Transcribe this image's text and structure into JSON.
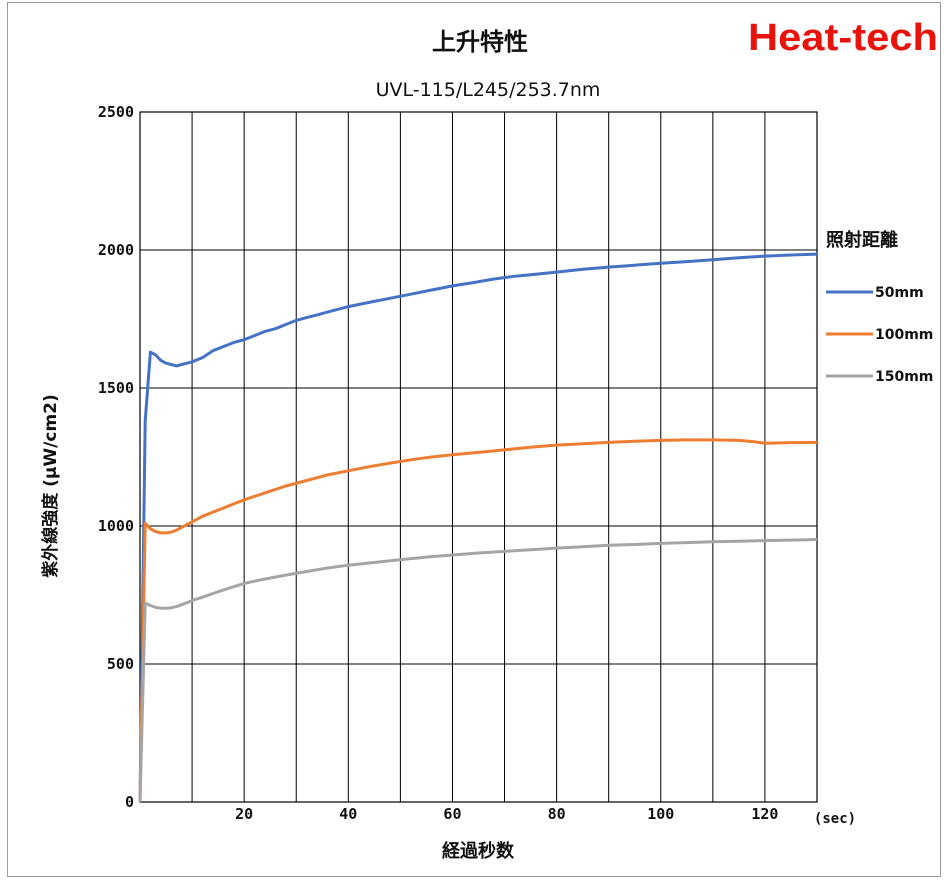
{
  "brand": {
    "logo_text": "Heat-tech",
    "color": "#e8140c"
  },
  "chart_data": {
    "type": "line",
    "title": "上升特性",
    "subtitle": "UVL-115/L245/253.7nm",
    "xlabel": "経過秒数",
    "x_unit": "(sec)",
    "ylabel": "紫外線強度 (μW/cm2)",
    "xlim": [
      0,
      130
    ],
    "ylim": [
      0,
      2500
    ],
    "x_ticks": [
      20,
      40,
      60,
      80,
      100,
      120
    ],
    "x_tick_labels": [
      "20",
      "40",
      "60",
      "80",
      "100",
      "120"
    ],
    "y_ticks": [
      0,
      500,
      1000,
      1500,
      2000,
      2500
    ],
    "y_tick_labels": [
      "0",
      "500",
      "1000",
      "1500",
      "2000",
      "2500"
    ],
    "x_grid_step": 10,
    "y_grid_step": 500,
    "grid": true,
    "legend": {
      "title": "照射距離",
      "position": "right"
    },
    "series": [
      {
        "name": "50mm",
        "color": "#4472c4",
        "points": [
          [
            0,
            0
          ],
          [
            1,
            1380
          ],
          [
            2,
            1630
          ],
          [
            3,
            1620
          ],
          [
            4,
            1600
          ],
          [
            5,
            1590
          ],
          [
            6,
            1585
          ],
          [
            7,
            1580
          ],
          [
            8,
            1585
          ],
          [
            9,
            1590
          ],
          [
            10,
            1595
          ],
          [
            12,
            1610
          ],
          [
            14,
            1635
          ],
          [
            16,
            1650
          ],
          [
            18,
            1665
          ],
          [
            20,
            1675
          ],
          [
            22,
            1690
          ],
          [
            24,
            1705
          ],
          [
            26,
            1715
          ],
          [
            28,
            1730
          ],
          [
            30,
            1745
          ],
          [
            32,
            1755
          ],
          [
            34,
            1765
          ],
          [
            36,
            1775
          ],
          [
            38,
            1785
          ],
          [
            40,
            1795
          ],
          [
            44,
            1810
          ],
          [
            48,
            1825
          ],
          [
            52,
            1840
          ],
          [
            56,
            1855
          ],
          [
            60,
            1870
          ],
          [
            64,
            1882
          ],
          [
            68,
            1895
          ],
          [
            72,
            1905
          ],
          [
            76,
            1912
          ],
          [
            80,
            1920
          ],
          [
            85,
            1930
          ],
          [
            90,
            1938
          ],
          [
            95,
            1945
          ],
          [
            100,
            1952
          ],
          [
            105,
            1958
          ],
          [
            110,
            1965
          ],
          [
            115,
            1972
          ],
          [
            120,
            1978
          ],
          [
            125,
            1982
          ],
          [
            130,
            1985
          ]
        ]
      },
      {
        "name": "100mm",
        "color": "#ed7d31",
        "points": [
          [
            0,
            0
          ],
          [
            1,
            1010
          ],
          [
            2,
            990
          ],
          [
            3,
            980
          ],
          [
            4,
            975
          ],
          [
            5,
            975
          ],
          [
            6,
            978
          ],
          [
            7,
            985
          ],
          [
            8,
            995
          ],
          [
            9,
            1005
          ],
          [
            10,
            1015
          ],
          [
            12,
            1035
          ],
          [
            14,
            1050
          ],
          [
            16,
            1065
          ],
          [
            18,
            1080
          ],
          [
            20,
            1095
          ],
          [
            24,
            1120
          ],
          [
            28,
            1145
          ],
          [
            32,
            1165
          ],
          [
            36,
            1185
          ],
          [
            40,
            1200
          ],
          [
            44,
            1215
          ],
          [
            48,
            1228
          ],
          [
            52,
            1240
          ],
          [
            56,
            1250
          ],
          [
            60,
            1258
          ],
          [
            64,
            1265
          ],
          [
            68,
            1272
          ],
          [
            72,
            1280
          ],
          [
            76,
            1287
          ],
          [
            80,
            1293
          ],
          [
            85,
            1298
          ],
          [
            90,
            1303
          ],
          [
            95,
            1307
          ],
          [
            100,
            1310
          ],
          [
            105,
            1312
          ],
          [
            110,
            1312
          ],
          [
            115,
            1310
          ],
          [
            118,
            1305
          ],
          [
            120,
            1300
          ],
          [
            125,
            1302
          ],
          [
            130,
            1303
          ]
        ]
      },
      {
        "name": "150mm",
        "color": "#a5a5a5",
        "points": [
          [
            0,
            0
          ],
          [
            1,
            720
          ],
          [
            2,
            712
          ],
          [
            3,
            705
          ],
          [
            4,
            702
          ],
          [
            5,
            702
          ],
          [
            6,
            704
          ],
          [
            7,
            708
          ],
          [
            8,
            715
          ],
          [
            9,
            722
          ],
          [
            10,
            730
          ],
          [
            12,
            742
          ],
          [
            14,
            755
          ],
          [
            16,
            768
          ],
          [
            18,
            780
          ],
          [
            20,
            792
          ],
          [
            24,
            808
          ],
          [
            28,
            822
          ],
          [
            32,
            835
          ],
          [
            36,
            848
          ],
          [
            40,
            858
          ],
          [
            44,
            866
          ],
          [
            48,
            874
          ],
          [
            52,
            882
          ],
          [
            56,
            889
          ],
          [
            60,
            895
          ],
          [
            65,
            902
          ],
          [
            70,
            908
          ],
          [
            75,
            914
          ],
          [
            80,
            920
          ],
          [
            85,
            925
          ],
          [
            90,
            930
          ],
          [
            95,
            933
          ],
          [
            100,
            937
          ],
          [
            105,
            940
          ],
          [
            110,
            943
          ],
          [
            115,
            945
          ],
          [
            120,
            947
          ],
          [
            125,
            949
          ],
          [
            130,
            951
          ]
        ]
      }
    ]
  }
}
